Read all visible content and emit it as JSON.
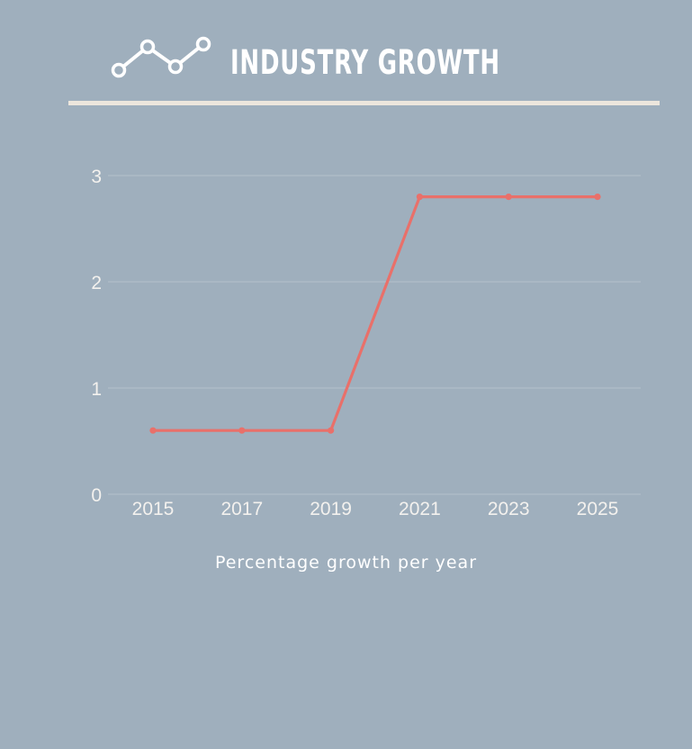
{
  "header": {
    "title": "INDUSTRY GROWTH",
    "icon": "line-chart-icon"
  },
  "colors": {
    "background": "#9fafbd",
    "line": "#e9706a",
    "divider": "#ece6dd",
    "text": "#ffffff",
    "tick_text": "#f3f1ee",
    "grid": "#b4c0cb"
  },
  "chart_data": {
    "type": "line",
    "x": [
      "2015",
      "2017",
      "2019",
      "2021",
      "2023",
      "2025"
    ],
    "series": [
      {
        "values": [
          0.6,
          0.6,
          0.6,
          2.8,
          2.8,
          2.8
        ]
      }
    ],
    "yticks": [
      "0",
      "1",
      "2",
      "3"
    ],
    "ylim": [
      0,
      3
    ],
    "grid": true,
    "xlabel": "Percentage growth per year"
  }
}
